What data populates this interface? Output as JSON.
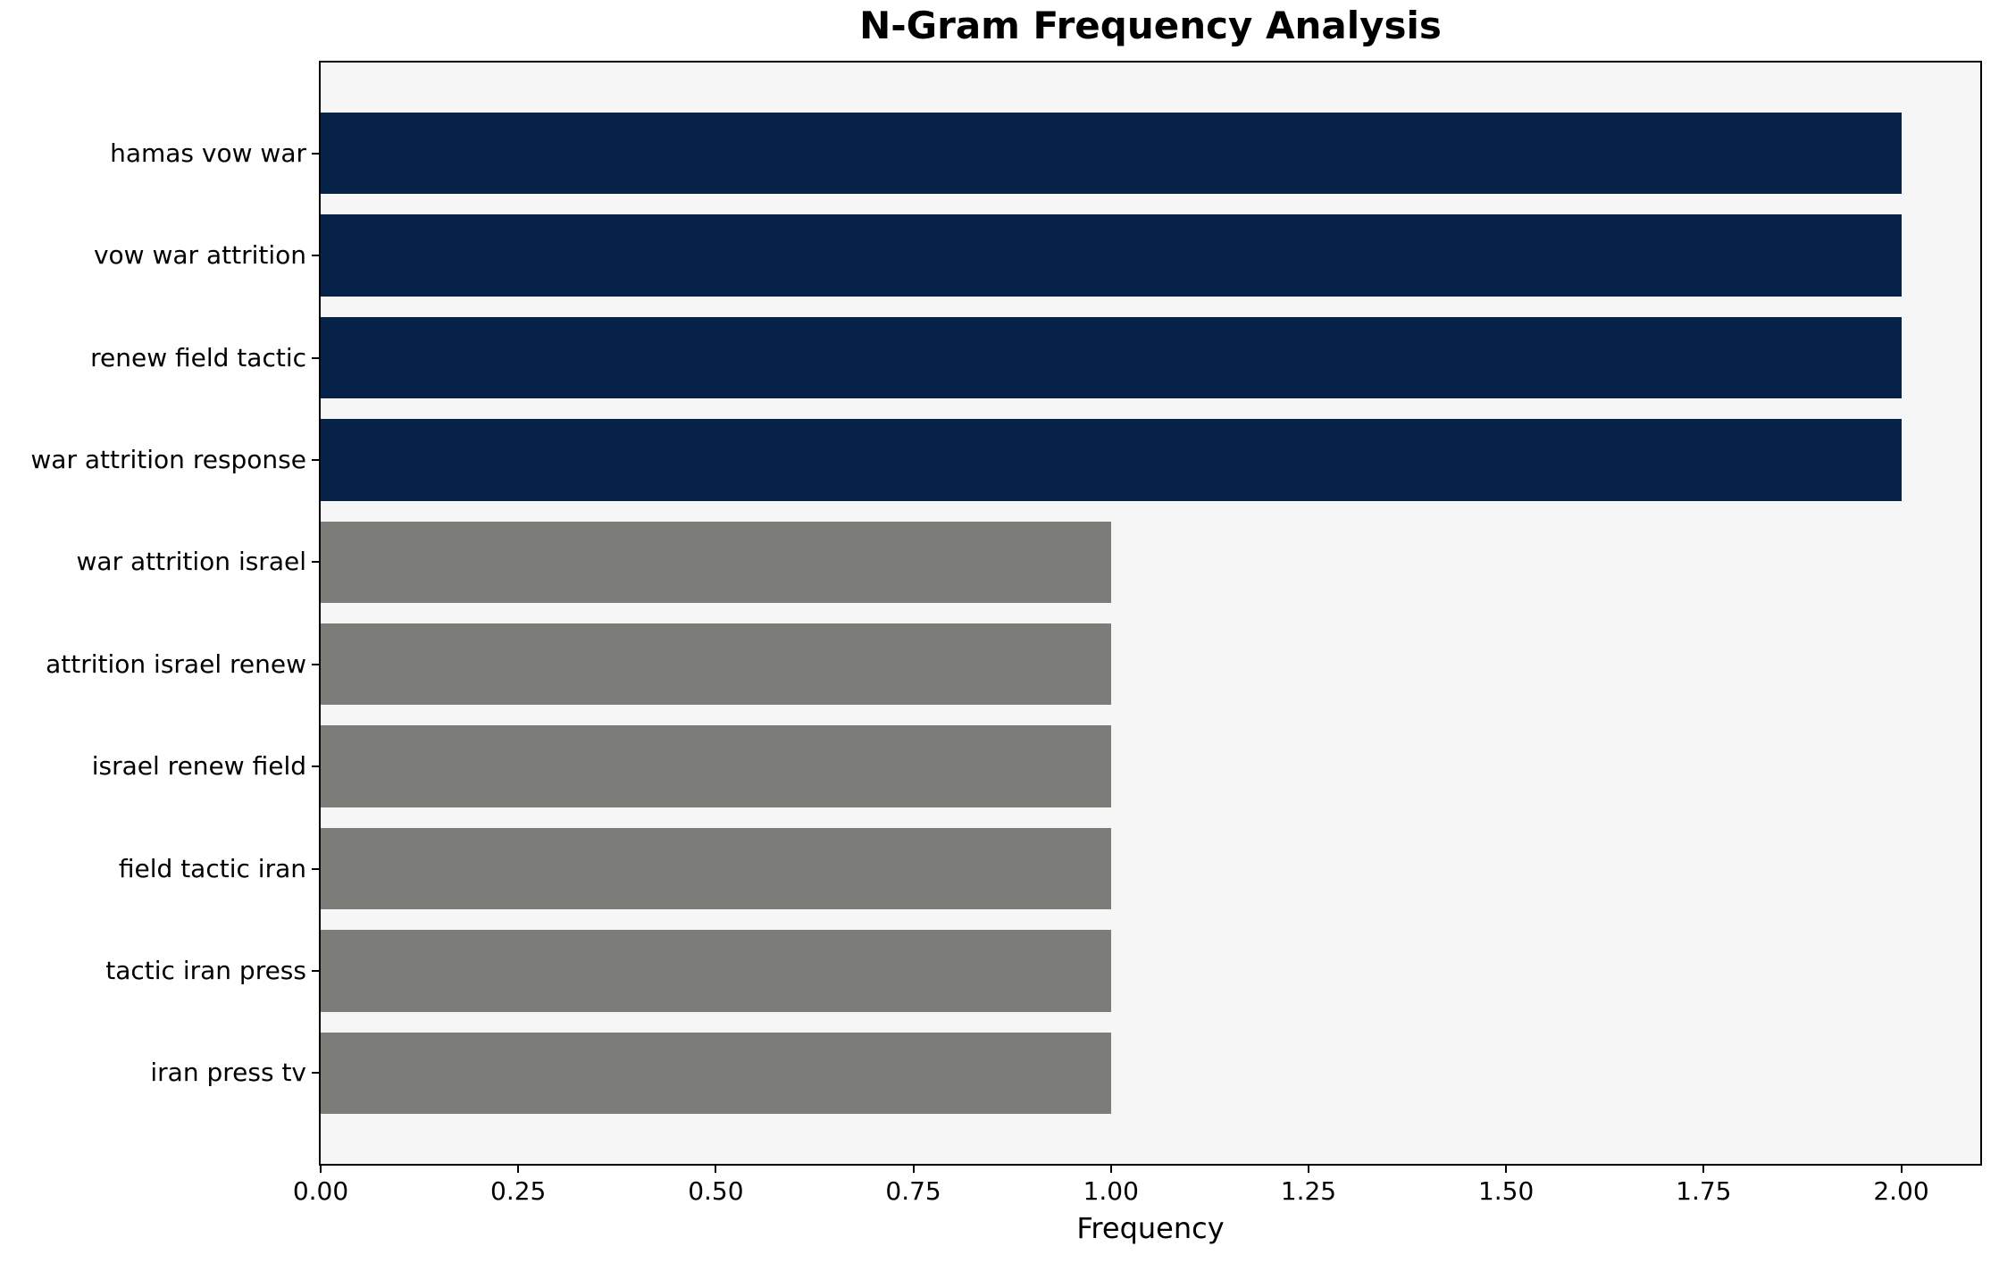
{
  "chart_data": {
    "type": "bar",
    "orientation": "horizontal",
    "title": "N-Gram Frequency Analysis",
    "xlabel": "Frequency",
    "ylabel": "",
    "categories": [
      "hamas vow war",
      "vow war attrition",
      "renew field tactic",
      "war attrition response",
      "war attrition israel",
      "attrition israel renew",
      "israel renew field",
      "field tactic iran",
      "tactic iran press",
      "iran press tv"
    ],
    "values": [
      2,
      2,
      2,
      2,
      1,
      1,
      1,
      1,
      1,
      1
    ],
    "bar_colors": [
      "#062248",
      "#062248",
      "#062248",
      "#062248",
      "#7C7C78",
      "#7C7C78",
      "#7C7C78",
      "#7C7C78",
      "#7C7C78",
      "#7C7C78"
    ],
    "xlim": [
      0,
      2.1
    ],
    "xtick_values": [
      0,
      0.25,
      0.5,
      0.75,
      1.0,
      1.25,
      1.5,
      1.75,
      2.0
    ],
    "xtick_labels": [
      "0.00",
      "0.25",
      "0.50",
      "0.75",
      "1.00",
      "1.25",
      "1.50",
      "1.75",
      "2.00"
    ],
    "grid": false,
    "legend": null,
    "plot_background": "#F6F6F6",
    "figure_background": "#FFFFFF",
    "spine_color": "#000000",
    "text_color": "#000000"
  }
}
